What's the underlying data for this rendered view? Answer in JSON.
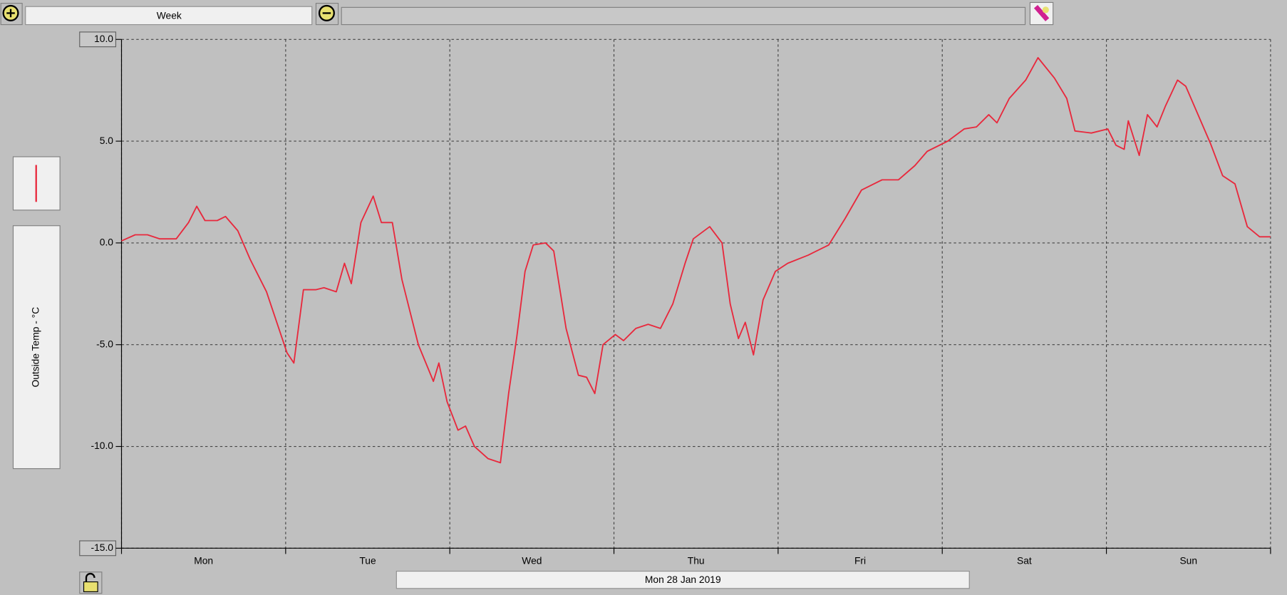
{
  "toolbar": {
    "range": "Week"
  },
  "date_label": "Mon 28 Jan 2019",
  "chart_data": {
    "type": "line",
    "x": [
      0,
      2.0,
      3.8,
      5.6,
      8.0,
      9.8,
      11.0,
      12.2,
      14.0,
      15.2,
      17.0,
      18.8,
      21.2,
      23.0,
      24.2,
      25.2,
      26.6,
      28.4,
      29.6,
      31.4,
      32.6,
      33.6,
      35.0,
      36.8,
      38.0,
      39.6,
      41.0,
      43.4,
      45.6,
      46.4,
      47.6,
      49.2,
      50.3,
      51.6,
      53.6,
      55.4,
      56.6,
      57.8,
      59.0,
      60.2,
      62.0,
      63.2,
      65.0,
      66.8,
      68.0,
      69.2,
      70.4,
      72.2,
      73.4,
      75.2,
      77.0,
      78.8,
      80.6,
      82.4,
      83.6,
      86.0,
      87.8,
      89.0,
      90.2,
      91.2,
      92.4,
      93.8,
      95.6,
      97.4,
      100.4,
      103.4,
      105.8,
      108.2,
      111.2,
      113.6,
      116.0,
      117.8,
      120.8,
      123.2,
      125.0,
      126.8,
      128.0,
      129.8,
      132.2,
      134.0,
      136.4,
      138.2,
      139.4,
      141.8,
      144.2,
      145.4,
      146.6,
      147.2,
      148.8,
      150.0,
      151.4,
      152.6,
      154.4,
      155.6,
      157.4,
      159.2,
      161.0,
      162.8,
      164.6,
      166.4,
      168
    ],
    "series": [
      {
        "name": "Outside Temp - °C",
        "color": "#e8283c",
        "values": [
          0.1,
          0.4,
          0.4,
          0.2,
          0.2,
          1.0,
          1.8,
          1.1,
          1.1,
          1.3,
          0.6,
          -0.8,
          -2.4,
          -4.2,
          -5.4,
          -5.9,
          -2.3,
          -2.3,
          -2.2,
          -2.4,
          -1.0,
          -2.0,
          1.0,
          2.3,
          1.0,
          1.0,
          -1.8,
          -5.0,
          -6.8,
          -5.9,
          -7.8,
          -9.2,
          -9.0,
          -10.0,
          -10.6,
          -10.8,
          -7.4,
          -4.6,
          -1.4,
          -0.1,
          0.0,
          -0.4,
          -4.2,
          -6.5,
          -6.6,
          -7.4,
          -5.0,
          -4.5,
          -4.8,
          -4.2,
          -4.0,
          -4.2,
          -3.0,
          -1.0,
          0.2,
          0.8,
          0.0,
          -3.0,
          -4.7,
          -3.9,
          -5.5,
          -2.8,
          -1.4,
          -1.0,
          -0.6,
          -0.1,
          1.2,
          2.6,
          3.1,
          3.1,
          3.8,
          4.5,
          5.0,
          5.6,
          5.7,
          6.3,
          5.9,
          7.1,
          8.0,
          9.1,
          8.1,
          7.1,
          5.5,
          5.4,
          5.6,
          4.8,
          4.6,
          6.0,
          4.3,
          6.3,
          5.7,
          6.7,
          8.0,
          7.7,
          6.3,
          4.9,
          3.3,
          2.9,
          0.8,
          0.3,
          0.3
        ]
      }
    ],
    "xlim": [
      0,
      168
    ],
    "xticks": [
      {
        "value": 12,
        "label": "Mon"
      },
      {
        "value": 36,
        "label": "Tue"
      },
      {
        "value": 60,
        "label": "Wed"
      },
      {
        "value": 84,
        "label": "Thu"
      },
      {
        "value": 108,
        "label": "Fri"
      },
      {
        "value": 132,
        "label": "Sat"
      },
      {
        "value": 156,
        "label": "Sun"
      }
    ],
    "x_gridlines": [
      0,
      24,
      48,
      72,
      96,
      120,
      144,
      168
    ],
    "ylim": [
      -15,
      10
    ],
    "yticks": [
      {
        "value": -15,
        "label": "-15.0"
      },
      {
        "value": -10,
        "label": "-10.0"
      },
      {
        "value": -5,
        "label": "-5.0"
      },
      {
        "value": 0,
        "label": "0.0"
      },
      {
        "value": 5,
        "label": "5.0"
      },
      {
        "value": 10,
        "label": "10.0"
      }
    ],
    "grid": true
  }
}
